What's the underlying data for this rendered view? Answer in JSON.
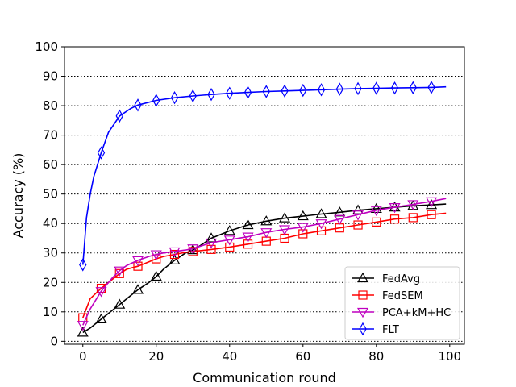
{
  "chart_data": {
    "type": "line",
    "title": "",
    "xlabel": "Communication round",
    "ylabel": "Accuracy (%)",
    "xlim": [
      -5,
      104
    ],
    "ylim": [
      -1,
      100
    ],
    "xticks": [
      0,
      20,
      40,
      60,
      80,
      100
    ],
    "yticks": [
      0,
      10,
      20,
      30,
      40,
      50,
      60,
      70,
      80,
      90,
      100
    ],
    "grid": "horizontal dotted",
    "legend_position": "lower-right",
    "series": [
      {
        "name": "FedAvg",
        "color": "#000000",
        "marker": "triangle-up",
        "x": [
          0,
          2,
          5,
          8,
          10,
          12,
          15,
          18,
          20,
          22,
          25,
          28,
          30,
          32,
          35,
          38,
          40,
          45,
          50,
          55,
          60,
          65,
          70,
          75,
          80,
          85,
          90,
          95,
          99
        ],
        "y": [
          3,
          4.5,
          7.5,
          10.5,
          12.5,
          14.5,
          17.5,
          20,
          22,
          24.5,
          27.5,
          30,
          31,
          32.5,
          35,
          36.5,
          37.5,
          39.5,
          40.8,
          41.8,
          42.5,
          43.2,
          43.8,
          44.5,
          45,
          45.5,
          46,
          46.3,
          46.6
        ],
        "marker_x": [
          0,
          5,
          10,
          15,
          20,
          25,
          30,
          35,
          40,
          45,
          50,
          55,
          60,
          65,
          70,
          75,
          80,
          85,
          90,
          95
        ],
        "marker_y": [
          3,
          7.5,
          12.5,
          17.5,
          22,
          27.5,
          31,
          35,
          37.5,
          39.5,
          40.8,
          41.8,
          42.5,
          43.2,
          43.8,
          44.5,
          45,
          45.5,
          46,
          46.3
        ]
      },
      {
        "name": "FedSEM",
        "color": "#ff0000",
        "marker": "square",
        "x": [
          0,
          2,
          5,
          8,
          10,
          12,
          15,
          18,
          20,
          22,
          25,
          28,
          30,
          35,
          40,
          45,
          50,
          55,
          60,
          65,
          70,
          75,
          80,
          85,
          90,
          95,
          99
        ],
        "y": [
          8,
          14.5,
          18,
          21,
          23,
          24.5,
          25.5,
          27,
          28,
          28.8,
          29.5,
          30.2,
          30.5,
          31.2,
          32,
          33,
          34,
          35,
          36.5,
          37.5,
          38.5,
          39.5,
          40.5,
          41.5,
          42,
          43,
          43.5
        ],
        "marker_x": [
          0,
          5,
          10,
          15,
          20,
          25,
          30,
          35,
          40,
          45,
          50,
          55,
          60,
          65,
          70,
          75,
          80,
          85,
          90,
          95
        ],
        "marker_y": [
          8,
          18,
          23,
          25.5,
          28,
          29.5,
          30.5,
          31.2,
          32,
          33,
          34,
          35,
          36.5,
          37.5,
          38.5,
          39.5,
          40.5,
          41.5,
          42,
          43
        ]
      },
      {
        "name": "PCA+kM+HC",
        "color": "#bf00bf",
        "marker": "triangle-down",
        "x": [
          0,
          2,
          5,
          8,
          10,
          12,
          15,
          18,
          20,
          22,
          25,
          28,
          30,
          35,
          40,
          45,
          50,
          55,
          60,
          65,
          70,
          75,
          80,
          85,
          90,
          95,
          99
        ],
        "y": [
          5.5,
          11,
          17,
          21.5,
          24,
          25.8,
          27.5,
          28.8,
          29.5,
          30,
          30.5,
          31,
          31.5,
          33.5,
          34.5,
          35.5,
          37,
          38,
          38.8,
          40,
          41.5,
          43,
          44.5,
          45.5,
          46.5,
          47.5,
          48.5
        ],
        "marker_x": [
          0,
          5,
          10,
          15,
          20,
          25,
          30,
          35,
          40,
          45,
          50,
          55,
          60,
          65,
          70,
          75,
          80,
          85,
          90,
          95
        ],
        "marker_y": [
          5.5,
          17,
          24,
          27.5,
          29.5,
          30.5,
          31.5,
          33.5,
          34.5,
          35.5,
          37,
          38,
          38.8,
          40,
          41.5,
          43,
          44.5,
          45.5,
          46.5,
          47.5
        ]
      },
      {
        "name": "FLT",
        "color": "#0000ff",
        "marker": "diamond",
        "x": [
          0,
          1,
          2,
          3,
          4,
          5,
          7,
          10,
          13,
          15,
          20,
          25,
          30,
          35,
          40,
          45,
          50,
          55,
          60,
          65,
          70,
          75,
          80,
          85,
          90,
          95,
          99
        ],
        "y": [
          26,
          42,
          50,
          56,
          60,
          64,
          71,
          76.5,
          79,
          80.2,
          81.8,
          82.7,
          83.3,
          83.8,
          84.2,
          84.5,
          84.8,
          85,
          85.2,
          85.4,
          85.6,
          85.8,
          85.9,
          86,
          86.1,
          86.2,
          86.4
        ],
        "marker_x": [
          0,
          5,
          10,
          15,
          20,
          25,
          30,
          35,
          40,
          45,
          50,
          55,
          60,
          65,
          70,
          75,
          80,
          85,
          90,
          95
        ],
        "marker_y": [
          26,
          64,
          76.5,
          80.2,
          81.8,
          82.7,
          83.3,
          83.8,
          84.2,
          84.5,
          84.8,
          85,
          85.2,
          85.4,
          85.6,
          85.8,
          85.9,
          86,
          86.1,
          86.2
        ]
      }
    ]
  }
}
